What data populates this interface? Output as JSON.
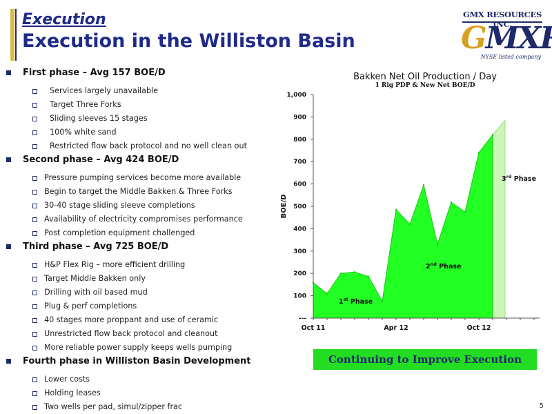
{
  "header": {
    "kicker": "Execution",
    "title": "Execution in the Williston Basin"
  },
  "logo": {
    "company": "GMX RESOURCES INC.",
    "mark_g": "G",
    "mark_rest": "MXR",
    "sub": "NYSE listed company"
  },
  "phases": [
    {
      "heading": "First phase – Avg 157 BOE/D",
      "items": [
        "Services largely unavailable",
        "Target Three Forks",
        "Sliding sleeves 15 stages",
        "100% white sand",
        "Restricted flow back protocol and no well clean out"
      ]
    },
    {
      "heading": "Second phase – Avg 424 BOE/D",
      "items": [
        "Pressure pumping services become more available",
        "Begin to target the Middle Bakken & Three Forks",
        "30-40 stage sliding sleeve completions",
        "Availability of electricity compromises performance",
        "Post completion equipment challenged"
      ]
    },
    {
      "heading": "Third phase – Avg 725 BOE/D",
      "items": [
        "H&P Flex Rig – more efficient drilling",
        "Target Middle Bakken only",
        "Drilling with oil based mud",
        "Plug & perf completions",
        "40 stages more proppant and use of ceramic",
        "Unrestricted flow back protocol and cleanout",
        "More reliable power supply keeps wells pumping"
      ]
    },
    {
      "heading": "Fourth phase in Williston Basin Development",
      "items": [
        "Lower costs",
        "Holding leases",
        "Two wells per pad, simul/zipper frac"
      ]
    }
  ],
  "chart_data": {
    "type": "area",
    "title": "Bakken Net Oil Production / Day",
    "subtitle": "1 Rig PDP & New Net BOE/D",
    "xlabel": "",
    "ylabel": "BOE/D",
    "ylim": [
      0,
      1000
    ],
    "yticks": [
      "---",
      "100",
      "200",
      "300",
      "400",
      "500",
      "600",
      "700",
      "800",
      "900",
      "1,000"
    ],
    "x_tick_labels": [
      {
        "index": 0,
        "label": "Oct 11"
      },
      {
        "index": 6,
        "label": "Apr 12"
      },
      {
        "index": 12,
        "label": "Oct 12"
      }
    ],
    "series": [
      {
        "values": [
          158,
          110,
          200,
          206,
          186,
          75,
          485,
          420,
          595,
          330,
          518,
          475,
          740,
          820
        ]
      }
    ],
    "projection": {
      "x_start": 13,
      "x_end": 13.9,
      "values": [
        820,
        885
      ]
    },
    "annotations": [
      {
        "base": "1",
        "sup": "st",
        "text": " Phase"
      },
      {
        "base": "2",
        "sup": "nd",
        "text": " Phase"
      },
      {
        "base": "3",
        "sup": "rd",
        "text": " Phase"
      }
    ],
    "colors": {
      "area": "#22ff22",
      "area_stroke": "#11cc11",
      "projection": "#ccf5b8"
    },
    "grid": false,
    "legend": "none"
  },
  "banner": "Continuing to Improve Execution",
  "page_number": "5"
}
